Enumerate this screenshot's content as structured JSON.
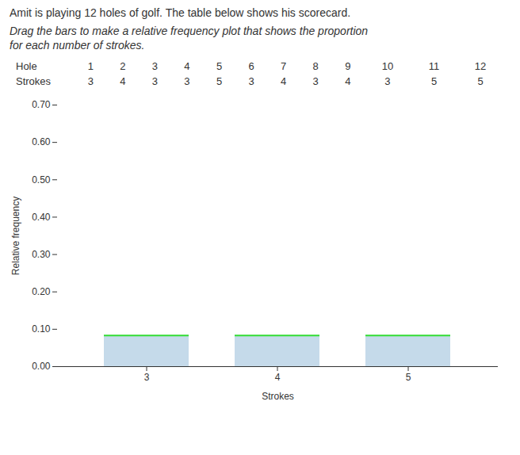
{
  "chart_data": {
    "type": "bar",
    "title": "Amit is playing 12 holes of golf. The table below shows his scorecard.",
    "subtitle": [
      "Drag the bars to make a relative frequency plot that shows the proportion",
      "for each number of strokes."
    ],
    "table": [
      {
        "label": "Hole",
        "values": [
          1,
          2,
          3,
          4,
          5,
          6,
          7,
          8,
          9,
          10,
          11,
          12
        ]
      },
      {
        "label": "Strokes",
        "values": [
          3,
          4,
          3,
          3,
          5,
          3,
          4,
          3,
          4,
          3,
          5,
          5
        ]
      }
    ],
    "categories": [
      "3",
      "4",
      "5"
    ],
    "values": [
      0.083,
      0.083,
      0.083
    ],
    "color": "#c5daea",
    "xlabel": "Strokes",
    "ylabel": "Relative frequency",
    "ylim": [
      0,
      0.7
    ],
    "yticks": [
      0,
      0.1,
      0.2,
      0.3,
      0.4,
      0.5,
      0.6,
      0.7
    ],
    "grid": false
  }
}
